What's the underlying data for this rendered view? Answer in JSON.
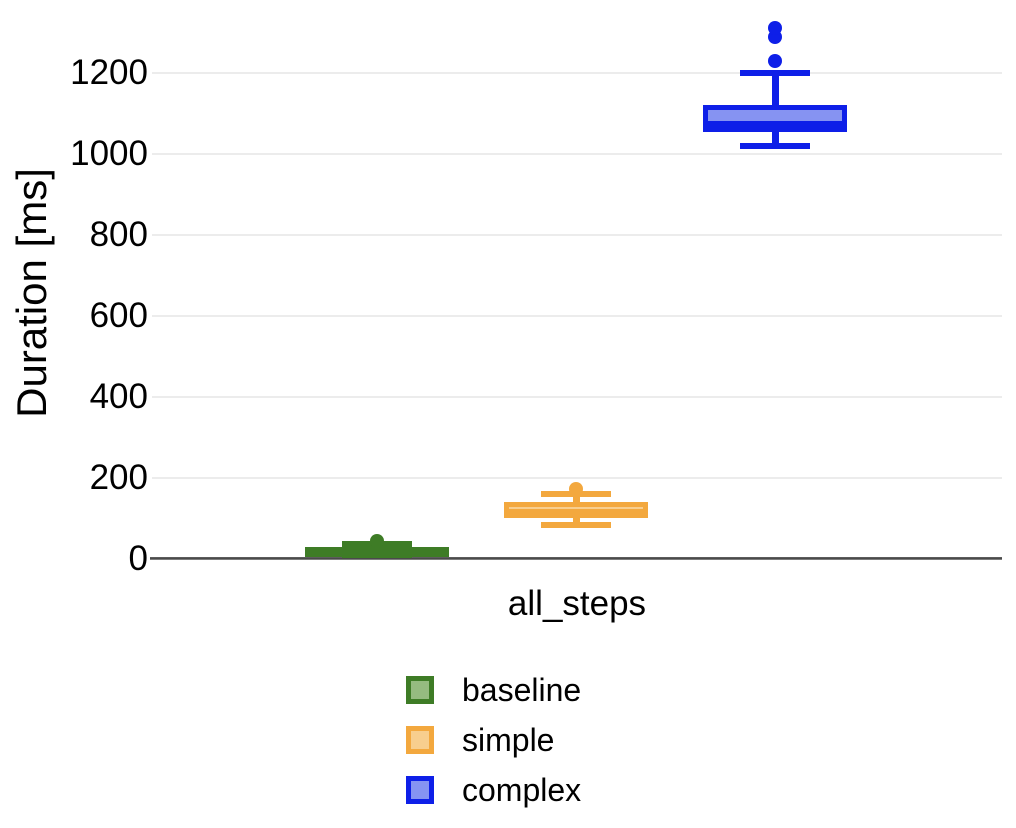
{
  "chart_data": {
    "type": "boxplot",
    "title": "",
    "ylabel": "Duration [ms]",
    "xlabel": "",
    "categories": [
      "all_steps"
    ],
    "y_ticks": [
      0,
      200,
      400,
      600,
      800,
      1000,
      1200
    ],
    "ylim": [
      0,
      1340
    ],
    "grid": true,
    "legend_position": "bottom",
    "series": [
      {
        "name": "baseline",
        "border_color": "#3E7C26",
        "fill_color": "#95BB80",
        "box": {
          "min": 10,
          "q1": 15,
          "median": 22,
          "q3": 30,
          "max": 36,
          "outliers": [
            44
          ]
        }
      },
      {
        "name": "simple",
        "border_color": "#F3A83E",
        "fill_color": "#F8CE8E",
        "box": {
          "min": 85,
          "q1": 100,
          "median": 117,
          "q3": 140,
          "max": 160,
          "outliers": [
            172
          ]
        }
      },
      {
        "name": "complex",
        "border_color": "#0E1FE8",
        "fill_color": "#8693F2",
        "box": {
          "min": 1020,
          "q1": 1055,
          "median": 1075,
          "q3": 1120,
          "max": 1200,
          "outliers": [
            1230,
            1290,
            1310
          ]
        }
      }
    ]
  },
  "axis": {
    "y_title": "Duration [ms]",
    "x_category": "all_steps"
  },
  "legend": {
    "items": [
      {
        "label": "baseline"
      },
      {
        "label": "simple"
      },
      {
        "label": "complex"
      }
    ]
  },
  "colors": {
    "gridline": "#ECECEC",
    "axis_line": "#565656",
    "text": "#000000",
    "background": "#FFFFFF"
  }
}
